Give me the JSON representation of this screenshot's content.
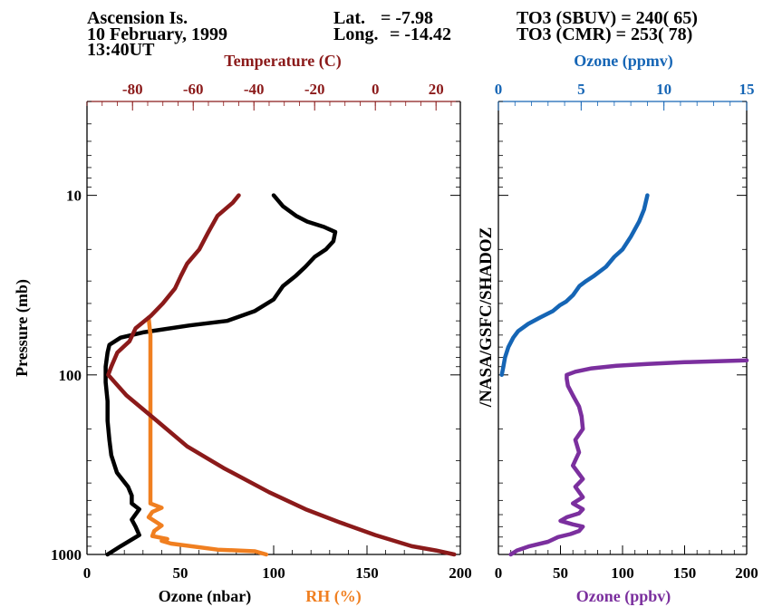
{
  "header": {
    "station": "Ascension Is.",
    "date": "10 February, 1999",
    "time": "13:40UT",
    "lat_label": "Lat.",
    "lat_value": "= -7.98",
    "long_label": "Long.",
    "long_value": "= -14.42",
    "to3_sbuv": "TO3 (SBUV) = 240( 65)",
    "to3_cmr": "TO3 (CMR) = 253( 78)"
  },
  "colors": {
    "temperature": "#8b1a1a",
    "rh": "#f07f20",
    "ozone_nbar": "#000000",
    "ozone_ppmv": "#1565b5",
    "ozone_ppbv": "#7b2f9e",
    "axis": "#000000"
  },
  "watermark": "/NASA/GSFC/SHADOZ",
  "chart_data": [
    {
      "type": "line",
      "panel": "left",
      "ylabel": "Pressure (mb)",
      "y_scale": "log",
      "y_reversed": true,
      "ylim": [
        1000,
        3
      ],
      "y_ticks": [
        "10",
        "100",
        "1000"
      ],
      "x_bottom": {
        "labels": [
          "Ozone (nbar)",
          "RH (%)"
        ],
        "range": [
          0,
          200
        ],
        "ticks": [
          "0",
          "50",
          "100",
          "150",
          "200"
        ]
      },
      "x_top": {
        "label": "Temperature (C)",
        "range": [
          -95,
          28
        ],
        "ticks": [
          "-80",
          "-60",
          "-40",
          "-20",
          "0",
          "20"
        ]
      },
      "series": [
        {
          "name": "Ozone (nbar)",
          "axis": "bottom",
          "points": [
            [
              11,
              1000
            ],
            [
              18,
              900
            ],
            [
              28,
              780
            ],
            [
              26,
              700
            ],
            [
              24,
              640
            ],
            [
              28,
              560
            ],
            [
              24,
              520
            ],
            [
              24,
              470
            ],
            [
              22,
              420
            ],
            [
              16,
              350
            ],
            [
              13,
              280
            ],
            [
              12,
              230
            ],
            [
              11,
              180
            ],
            [
              11,
              140
            ],
            [
              10,
              110
            ],
            [
              10,
              90
            ],
            [
              11,
              75
            ],
            [
              12,
              68
            ],
            [
              18,
              62
            ],
            [
              30,
              58
            ],
            [
              55,
              53
            ],
            [
              75,
              50
            ],
            [
              90,
              44
            ],
            [
              100,
              38
            ],
            [
              105,
              32
            ],
            [
              112,
              28
            ],
            [
              117,
              25
            ],
            [
              122,
              22
            ],
            [
              128,
              20
            ],
            [
              132,
              18
            ],
            [
              133,
              16
            ],
            [
              127,
              15
            ],
            [
              118,
              14
            ],
            [
              112,
              13
            ],
            [
              105,
              11.5
            ],
            [
              100,
              10
            ]
          ]
        },
        {
          "name": "RH (%)",
          "axis": "bottom",
          "points": [
            [
              96,
              1000
            ],
            [
              90,
              960
            ],
            [
              70,
              940
            ],
            [
              45,
              870
            ],
            [
              40,
              840
            ],
            [
              43,
              820
            ],
            [
              35,
              790
            ],
            [
              36,
              740
            ],
            [
              40,
              690
            ],
            [
              33,
              620
            ],
            [
              35,
              580
            ],
            [
              40,
              550
            ],
            [
              34,
              520
            ],
            [
              34,
              420
            ],
            [
              34,
              250
            ],
            [
              34,
              120
            ],
            [
              34,
              60
            ],
            [
              33,
              48
            ]
          ]
        },
        {
          "name": "Temperature (C)",
          "axis": "top",
          "points": [
            [
              26,
              1000
            ],
            [
              20,
              950
            ],
            [
              12,
              900
            ],
            [
              0,
              780
            ],
            [
              -12,
              660
            ],
            [
              -23,
              560
            ],
            [
              -35,
              450
            ],
            [
              -50,
              330
            ],
            [
              -62,
              250
            ],
            [
              -72,
              180
            ],
            [
              -82,
              130
            ],
            [
              -88,
              100
            ],
            [
              -87,
              90
            ],
            [
              -85,
              75
            ],
            [
              -81,
              65
            ],
            [
              -79,
              55
            ],
            [
              -76,
              50
            ],
            [
              -74,
              47
            ],
            [
              -70,
              40
            ],
            [
              -66,
              33
            ],
            [
              -64,
              28
            ],
            [
              -62,
              24
            ],
            [
              -58,
              20
            ],
            [
              -55,
              16
            ],
            [
              -52,
              13
            ],
            [
              -47,
              11
            ],
            [
              -45,
              10
            ]
          ]
        }
      ]
    },
    {
      "type": "line",
      "panel": "right",
      "y_scale": "log",
      "y_reversed": true,
      "ylim": [
        1000,
        3
      ],
      "x_bottom": {
        "label": "Ozone (ppbv)",
        "range": [
          0,
          200
        ],
        "ticks": [
          "0",
          "50",
          "100",
          "150",
          "200"
        ]
      },
      "x_top": {
        "label": "Ozone (ppmv)",
        "range": [
          0,
          15
        ],
        "ticks": [
          "0",
          "5",
          "10",
          "15"
        ]
      },
      "series": [
        {
          "name": "Ozone (ppmv)",
          "axis": "top",
          "points": [
            [
              0.2,
              100
            ],
            [
              0.3,
              90
            ],
            [
              0.4,
              80
            ],
            [
              0.6,
              70
            ],
            [
              0.9,
              62
            ],
            [
              1.2,
              57
            ],
            [
              1.8,
              52
            ],
            [
              2.5,
              48
            ],
            [
              3.3,
              44
            ],
            [
              3.7,
              41
            ],
            [
              4.1,
              39
            ],
            [
              4.5,
              36
            ],
            [
              4.9,
              32
            ],
            [
              5.3,
              30
            ],
            [
              5.8,
              28
            ],
            [
              6.5,
              25
            ],
            [
              7.0,
              22
            ],
            [
              7.5,
              20
            ],
            [
              8.0,
              17
            ],
            [
              8.5,
              14
            ],
            [
              8.8,
              12
            ],
            [
              9.0,
              10
            ]
          ]
        },
        {
          "name": "Ozone (ppbv)",
          "axis": "bottom",
          "points": [
            [
              10,
              1000
            ],
            [
              15,
              950
            ],
            [
              25,
              900
            ],
            [
              40,
              850
            ],
            [
              48,
              800
            ],
            [
              58,
              770
            ],
            [
              65,
              740
            ],
            [
              68,
              700
            ],
            [
              60,
              680
            ],
            [
              50,
              650
            ],
            [
              55,
              620
            ],
            [
              65,
              590
            ],
            [
              68,
              560
            ],
            [
              60,
              520
            ],
            [
              68,
              480
            ],
            [
              62,
              420
            ],
            [
              68,
              380
            ],
            [
              60,
              320
            ],
            [
              65,
              270
            ],
            [
              62,
              230
            ],
            [
              68,
              200
            ],
            [
              67,
              170
            ],
            [
              65,
              150
            ],
            [
              60,
              130
            ],
            [
              56,
              115
            ],
            [
              55,
              105
            ],
            [
              55,
              100
            ],
            [
              62,
              96
            ],
            [
              75,
              92
            ],
            [
              95,
              89
            ],
            [
              120,
              87
            ],
            [
              150,
              85
            ],
            [
              200,
              83
            ]
          ]
        }
      ]
    }
  ]
}
